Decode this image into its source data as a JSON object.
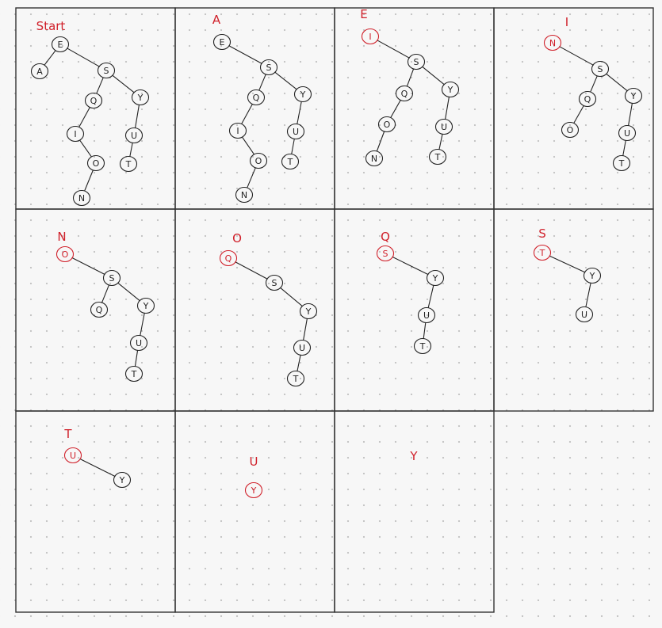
{
  "panels": [
    {
      "label": "Start",
      "nodes": [
        {
          "id": "E",
          "text": "E"
        },
        {
          "id": "A",
          "text": "A"
        },
        {
          "id": "S",
          "text": "S"
        },
        {
          "id": "Q",
          "text": "Q"
        },
        {
          "id": "Y",
          "text": "Y"
        },
        {
          "id": "I",
          "text": "I"
        },
        {
          "id": "U",
          "text": "U"
        },
        {
          "id": "O",
          "text": "O"
        },
        {
          "id": "T",
          "text": "T"
        },
        {
          "id": "N",
          "text": "N"
        }
      ],
      "edges": [
        [
          "E",
          "A"
        ],
        [
          "E",
          "S"
        ],
        [
          "S",
          "Q"
        ],
        [
          "S",
          "Y"
        ],
        [
          "Q",
          "I"
        ],
        [
          "I",
          "O"
        ],
        [
          "O",
          "N"
        ],
        [
          "Y",
          "U"
        ],
        [
          "U",
          "T"
        ]
      ]
    },
    {
      "label": "A",
      "nodes": [
        {
          "id": "E",
          "text": "E"
        },
        {
          "id": "S",
          "text": "S"
        },
        {
          "id": "Q",
          "text": "Q"
        },
        {
          "id": "Y",
          "text": "Y"
        },
        {
          "id": "I",
          "text": "I"
        },
        {
          "id": "U",
          "text": "U"
        },
        {
          "id": "O",
          "text": "O"
        },
        {
          "id": "T",
          "text": "T"
        },
        {
          "id": "N",
          "text": "N"
        }
      ],
      "edges": [
        [
          "E",
          "S"
        ],
        [
          "S",
          "Q"
        ],
        [
          "S",
          "Y"
        ],
        [
          "Q",
          "I"
        ],
        [
          "I",
          "O"
        ],
        [
          "O",
          "N"
        ],
        [
          "Y",
          "U"
        ],
        [
          "U",
          "T"
        ]
      ]
    },
    {
      "label": "E",
      "nodes": [
        {
          "id": "I",
          "text": "I",
          "removed": true
        },
        {
          "id": "S",
          "text": "S"
        },
        {
          "id": "Q",
          "text": "Q"
        },
        {
          "id": "Y",
          "text": "Y"
        },
        {
          "id": "O",
          "text": "O"
        },
        {
          "id": "U",
          "text": "U"
        },
        {
          "id": "N",
          "text": "N"
        },
        {
          "id": "T",
          "text": "T"
        }
      ],
      "edges": [
        [
          "I",
          "S"
        ],
        [
          "S",
          "Q"
        ],
        [
          "S",
          "Y"
        ],
        [
          "Q",
          "O"
        ],
        [
          "O",
          "N"
        ],
        [
          "Y",
          "U"
        ],
        [
          "U",
          "T"
        ]
      ]
    },
    {
      "label": "I",
      "nodes": [
        {
          "id": "N",
          "text": "N",
          "removed": true
        },
        {
          "id": "S",
          "text": "S"
        },
        {
          "id": "Q",
          "text": "Q"
        },
        {
          "id": "Y",
          "text": "Y"
        },
        {
          "id": "O",
          "text": "O"
        },
        {
          "id": "U",
          "text": "U"
        },
        {
          "id": "T",
          "text": "T"
        }
      ],
      "edges": [
        [
          "N",
          "S"
        ],
        [
          "S",
          "Q"
        ],
        [
          "S",
          "Y"
        ],
        [
          "Q",
          "O"
        ],
        [
          "Y",
          "U"
        ],
        [
          "U",
          "T"
        ]
      ]
    },
    {
      "label": "N",
      "nodes": [
        {
          "id": "O",
          "text": "O",
          "removed": true
        },
        {
          "id": "S",
          "text": "S"
        },
        {
          "id": "Q",
          "text": "Q"
        },
        {
          "id": "Y",
          "text": "Y"
        },
        {
          "id": "U",
          "text": "U"
        },
        {
          "id": "T",
          "text": "T"
        }
      ],
      "edges": [
        [
          "O",
          "S"
        ],
        [
          "S",
          "Q"
        ],
        [
          "S",
          "Y"
        ],
        [
          "Y",
          "U"
        ],
        [
          "U",
          "T"
        ]
      ]
    },
    {
      "label": "O",
      "nodes": [
        {
          "id": "Q",
          "text": "Q",
          "removed": true
        },
        {
          "id": "S",
          "text": "S"
        },
        {
          "id": "Y",
          "text": "Y"
        },
        {
          "id": "U",
          "text": "U"
        },
        {
          "id": "T",
          "text": "T"
        }
      ],
      "edges": [
        [
          "Q",
          "S"
        ],
        [
          "S",
          "Y"
        ],
        [
          "Y",
          "U"
        ],
        [
          "U",
          "T"
        ]
      ]
    },
    {
      "label": "Q",
      "nodes": [
        {
          "id": "S",
          "text": "S",
          "removed": true
        },
        {
          "id": "Y",
          "text": "Y"
        },
        {
          "id": "U",
          "text": "U"
        },
        {
          "id": "T",
          "text": "T"
        }
      ],
      "edges": [
        [
          "S",
          "Y"
        ],
        [
          "Y",
          "U"
        ],
        [
          "U",
          "T"
        ]
      ]
    },
    {
      "label": "S",
      "nodes": [
        {
          "id": "T",
          "text": "T",
          "removed": true
        },
        {
          "id": "Y",
          "text": "Y"
        },
        {
          "id": "U",
          "text": "U"
        }
      ],
      "edges": [
        [
          "T",
          "Y"
        ],
        [
          "Y",
          "U"
        ]
      ]
    },
    {
      "label": "T",
      "nodes": [
        {
          "id": "U",
          "text": "U",
          "removed": true
        },
        {
          "id": "Y",
          "text": "Y"
        }
      ],
      "edges": [
        [
          "U",
          "Y"
        ]
      ]
    },
    {
      "label": "U",
      "nodes": [
        {
          "id": "Y",
          "text": "Y",
          "removed": true
        }
      ],
      "edges": []
    },
    {
      "label": "Y",
      "nodes": [],
      "edges": []
    }
  ],
  "colors": {
    "ink": "#222222",
    "highlight": "#d0202a",
    "frame": "#333333"
  }
}
